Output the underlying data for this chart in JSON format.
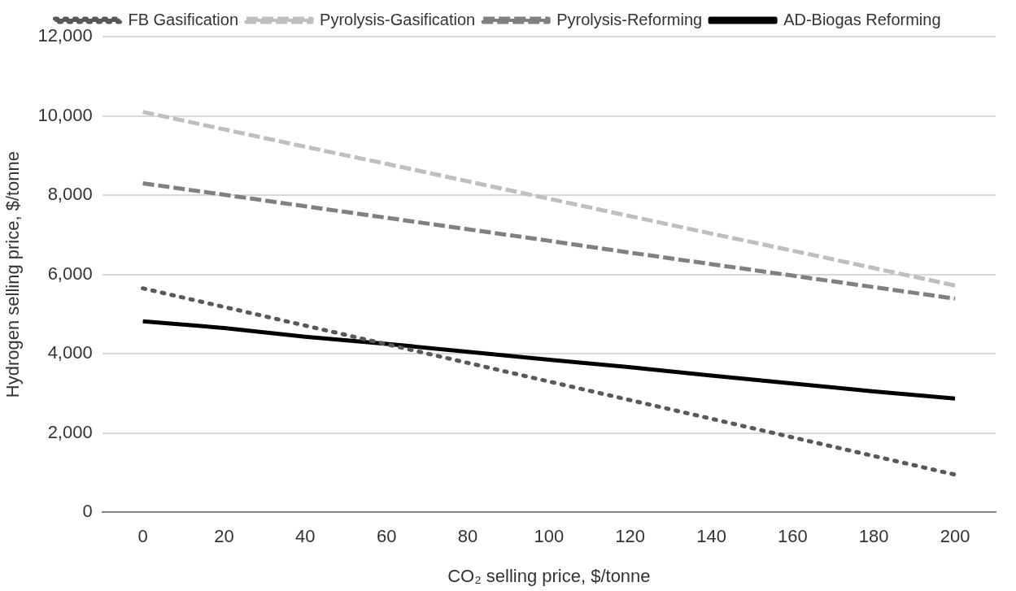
{
  "chart_data": {
    "type": "line",
    "xlabel": "CO₂ selling price, $/tonne",
    "ylabel": "Hydrogen selling price, $/tonne",
    "categories": [
      "0",
      "20",
      "40",
      "60",
      "80",
      "100",
      "120",
      "140",
      "160",
      "180",
      "200"
    ],
    "series": [
      {
        "name": "FB Gasification",
        "color": "#595959",
        "line_style": "dotted",
        "values": [
          5650,
          5180,
          4710,
          4240,
          3770,
          3300,
          2830,
          2360,
          1890,
          1420,
          950
        ]
      },
      {
        "name": "Pyrolysis-Gasification",
        "color": "#bfbfbf",
        "line_style": "dashed",
        "values": [
          10100,
          9660,
          9220,
          8790,
          8350,
          7910,
          7470,
          7030,
          6600,
          6160,
          5720
        ]
      },
      {
        "name": "Pyrolysis-Reforming",
        "color": "#808080",
        "line_style": "dashed",
        "values": [
          8300,
          8010,
          7720,
          7430,
          7140,
          6850,
          6550,
          6260,
          5970,
          5680,
          5390
        ]
      },
      {
        "name": "AD-Biogas Reforming",
        "color": "#000000",
        "line_style": "solid",
        "values": [
          4820,
          4650,
          4430,
          4250,
          4050,
          3850,
          3660,
          3450,
          3250,
          3050,
          2870
        ]
      }
    ],
    "ylim": [
      0,
      12000
    ],
    "yticks": [
      {
        "value": 0,
        "label": "0"
      },
      {
        "value": 2000,
        "label": "2,000"
      },
      {
        "value": 4000,
        "label": "4,000"
      },
      {
        "value": 6000,
        "label": "6,000"
      },
      {
        "value": 8000,
        "label": "8,000"
      },
      {
        "value": 10000,
        "label": "10,000"
      },
      {
        "value": 12000,
        "label": "12,000"
      }
    ],
    "grid": "y",
    "legend": "top",
    "marker": "none"
  }
}
